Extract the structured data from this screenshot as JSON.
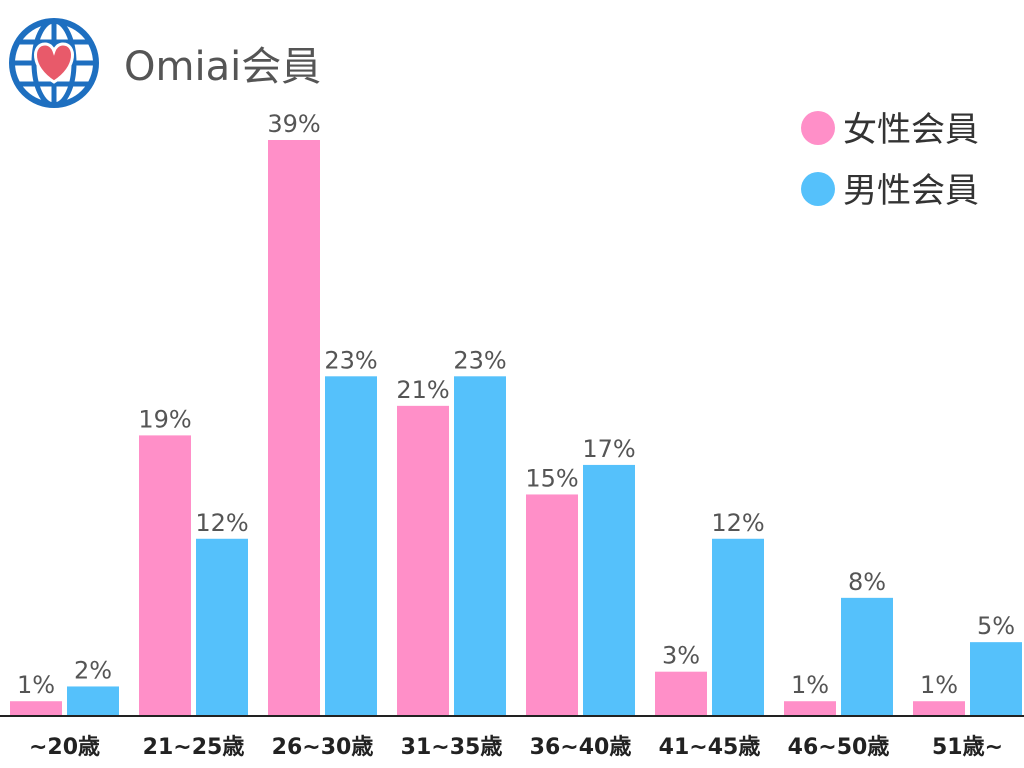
{
  "header": {
    "title": "Omiai会員",
    "logo_icon": "globe-heart-icon"
  },
  "colors": {
    "female": "#FF8FC8",
    "male": "#55C1FB",
    "logo_blue": "#1E6FC0",
    "logo_heart": "#E85A6A",
    "axis": "#222222"
  },
  "chart_data": {
    "type": "bar",
    "categories": [
      "~20歳",
      "21~25歳",
      "26~30歳",
      "31~35歳",
      "36~40歳",
      "41~45歳",
      "46~50歳",
      "51歳~"
    ],
    "series": [
      {
        "name": "女性会員",
        "values": [
          1,
          19,
          39,
          21,
          15,
          3,
          1,
          1
        ],
        "labels": [
          "1%",
          "19%",
          "39%",
          "21%",
          "15%",
          "3%",
          "1%",
          "1%"
        ]
      },
      {
        "name": "男性会員",
        "values": [
          2,
          12,
          23,
          23,
          17,
          12,
          8,
          5
        ],
        "labels": [
          "2%",
          "12%",
          "23%",
          "23%",
          "17%",
          "12%",
          "8%",
          "5%"
        ]
      }
    ],
    "ylim": [
      0,
      39
    ],
    "legend_position": "top-right",
    "grid": false
  }
}
